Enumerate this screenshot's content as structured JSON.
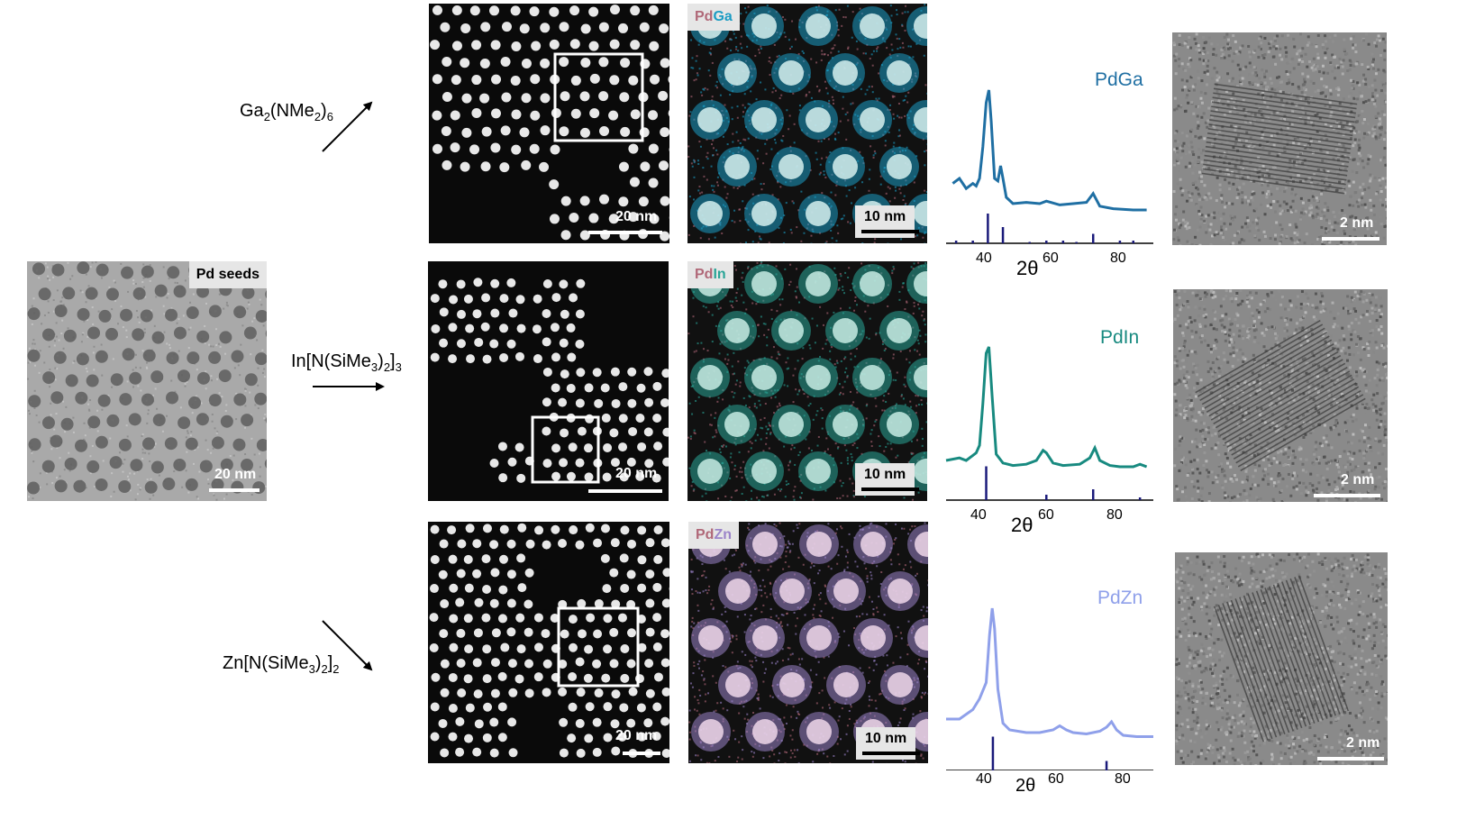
{
  "seed": {
    "tag": "Pd seeds",
    "scale": "20 nm"
  },
  "reagents": {
    "ga": {
      "a": "Ga",
      "b": "2",
      "c": "(NMe",
      "d": "2",
      "e": ")",
      "f": "6"
    },
    "in": {
      "a": "In[N(SiMe",
      "b": "3",
      "c": ")",
      "d": "2",
      "e": "]",
      "f": "3"
    },
    "zn": {
      "a": "Zn[N(SiMe",
      "b": "3",
      "c": ")",
      "d": "2",
      "e": "]",
      "f": "2"
    }
  },
  "rows": [
    {
      "haadf_scale": "20 nm",
      "map_pd": "Pd",
      "map_m": "Ga",
      "map_scale": "10 nm",
      "phase": "PdGa",
      "hr_scale": "2 nm",
      "color": "#1f6fa3",
      "m_color": "#1b9cc4"
    },
    {
      "haadf_scale": "20 nm",
      "map_pd": "Pd",
      "map_m": "In",
      "map_scale": "10 nm",
      "phase": "PdIn",
      "hr_scale": "2 nm",
      "color": "#188a80",
      "m_color": "#2aa597"
    },
    {
      "haadf_scale": "20 nm",
      "map_pd": "Pd",
      "map_m": "Zn",
      "map_scale": "10 nm",
      "phase": "PdZn",
      "hr_scale": "2 nm",
      "color": "#8fa0ea",
      "m_color": "#9b84c9"
    }
  ],
  "xrd": {
    "x_ticks": [
      "40",
      "60",
      "80"
    ],
    "x_label": "2θ"
  },
  "chart_data": [
    {
      "type": "line",
      "series": [
        {
          "name": "PdGa",
          "color": "#1f6fa3",
          "x": [
            30,
            32,
            34,
            36,
            37,
            38,
            39,
            40,
            40.8,
            41.5,
            42.5,
            43.5,
            44.3,
            45,
            46,
            48,
            52,
            56,
            58,
            62,
            66,
            70,
            72,
            74,
            78,
            84,
            88
          ],
          "values": [
            0.26,
            0.3,
            0.22,
            0.26,
            0.24,
            0.3,
            0.55,
            0.9,
            1.0,
            0.75,
            0.3,
            0.28,
            0.4,
            0.3,
            0.15,
            0.1,
            0.11,
            0.1,
            0.12,
            0.09,
            0.1,
            0.11,
            0.18,
            0.08,
            0.06,
            0.05,
            0.05
          ]
        }
      ],
      "reference_x": [
        31,
        36,
        40.5,
        45,
        53,
        58,
        63,
        67,
        72,
        80,
        84
      ],
      "reference_values": [
        0.02,
        0.02,
        0.22,
        0.12,
        0.01,
        0.02,
        0.02,
        0.01,
        0.07,
        0.02,
        0.02
      ],
      "xlim": [
        28,
        90
      ]
    },
    {
      "type": "line",
      "series": [
        {
          "name": "PdIn",
          "color": "#188a80",
          "x": [
            28,
            32,
            34,
            36,
            37,
            38,
            39,
            40,
            40.8,
            41.8,
            43,
            45,
            48,
            52,
            55,
            57,
            58,
            60,
            63,
            68,
            71,
            72.5,
            74,
            77,
            80,
            84,
            86,
            88
          ],
          "values": [
            0.1,
            0.12,
            0.1,
            0.14,
            0.16,
            0.22,
            0.55,
            0.95,
            1.0,
            0.6,
            0.15,
            0.08,
            0.06,
            0.07,
            0.1,
            0.18,
            0.16,
            0.08,
            0.06,
            0.07,
            0.12,
            0.2,
            0.1,
            0.06,
            0.05,
            0.05,
            0.07,
            0.05
          ],
          "shown": true
        }
      ],
      "reference_x": [
        40,
        58,
        72,
        86
      ],
      "reference_values": [
        0.25,
        0.04,
        0.08,
        0.02
      ],
      "xlim": [
        28,
        90
      ]
    },
    {
      "type": "line",
      "series": [
        {
          "name": "PdZn",
          "color": "#8fa0ea",
          "x": [
            28,
            32,
            36,
            38,
            40,
            41,
            41.8,
            42.5,
            43.5,
            45,
            47,
            52,
            56,
            60,
            62,
            64,
            66,
            70,
            74,
            76,
            77.5,
            79,
            81,
            85,
            90
          ],
          "values": [
            0.18,
            0.18,
            0.25,
            0.33,
            0.45,
            0.8,
            1.0,
            0.85,
            0.4,
            0.15,
            0.1,
            0.08,
            0.08,
            0.1,
            0.13,
            0.1,
            0.08,
            0.07,
            0.09,
            0.12,
            0.16,
            0.1,
            0.06,
            0.05,
            0.05
          ]
        }
      ],
      "reference_x": [
        42,
        76
      ],
      "reference_values": [
        0.25,
        0.07
      ],
      "xlim": [
        28,
        90
      ]
    }
  ]
}
